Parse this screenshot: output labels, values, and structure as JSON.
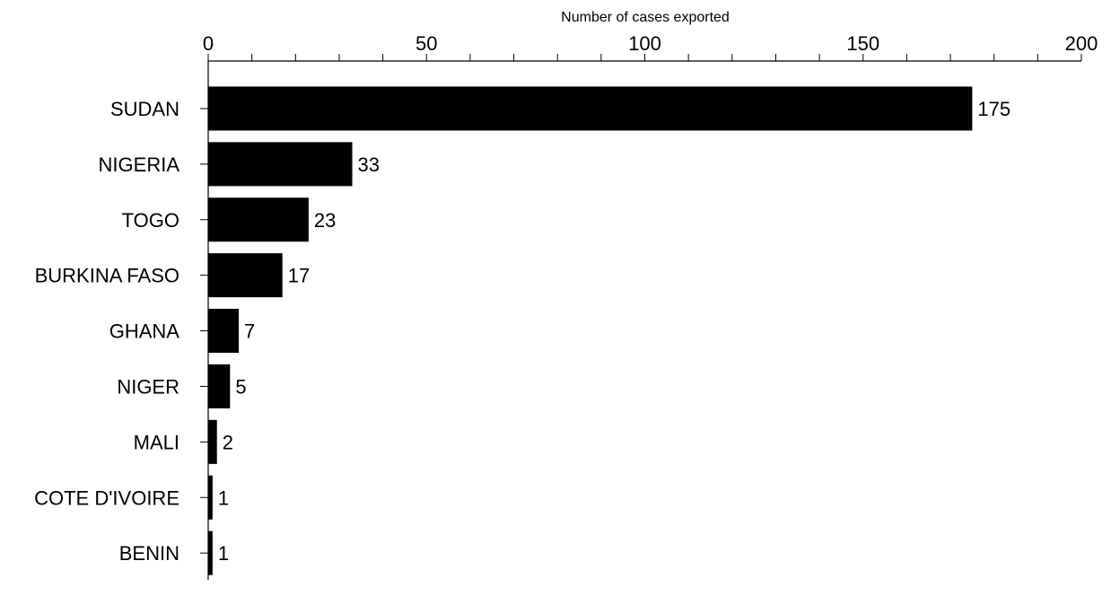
{
  "chart_data": {
    "type": "bar",
    "orientation": "horizontal",
    "xlabel": "Number of cases exported",
    "xlim": [
      0,
      200
    ],
    "x_major_ticks": [
      0,
      50,
      100,
      150,
      200
    ],
    "x_minor_tick_step": 10,
    "x_axis_position": "top",
    "grid": false,
    "categories": [
      "SUDAN",
      "NIGERIA",
      "TOGO",
      "BURKINA FASO",
      "GHANA",
      "NIGER",
      "MALI",
      "COTE D'IVOIRE",
      "BENIN"
    ],
    "values": [
      175,
      33,
      23,
      17,
      7,
      5,
      2,
      1,
      1
    ],
    "data_labels": [
      "175",
      "33",
      "23",
      "17",
      "7",
      "5",
      "2",
      "1",
      "1"
    ],
    "bar_color": "#000000"
  }
}
